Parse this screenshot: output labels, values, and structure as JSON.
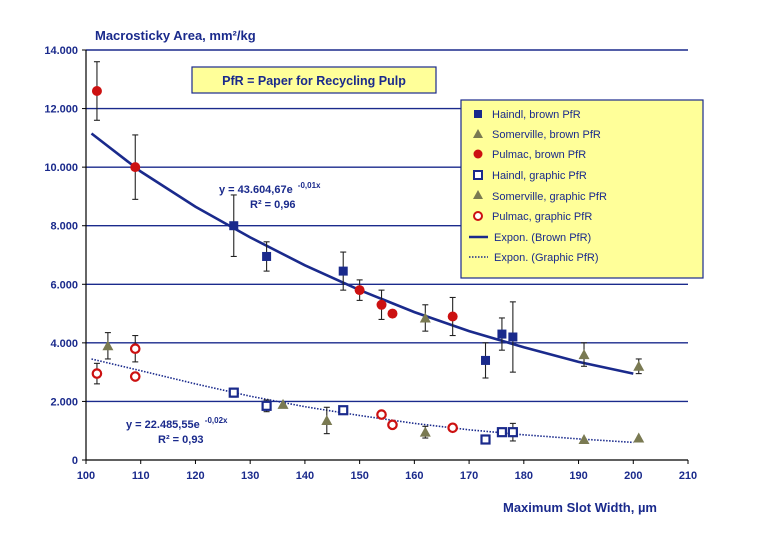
{
  "chart_data": {
    "type": "scatter",
    "title": "Macrosticky Area, mm²/kg",
    "xlabel": "Maximum Slot Width, µm",
    "ylabel": "",
    "xlim": [
      100,
      210
    ],
    "ylim": [
      0,
      14000
    ],
    "x_ticks": [
      100,
      110,
      120,
      130,
      140,
      150,
      160,
      170,
      180,
      190,
      200,
      210
    ],
    "x_tick_labels": [
      "100",
      "110",
      "120",
      "130",
      "140",
      "150",
      "160",
      "170",
      "180",
      "190",
      "200",
      "210"
    ],
    "y_ticks": [
      0,
      2000,
      4000,
      6000,
      8000,
      10000,
      12000,
      14000
    ],
    "y_tick_labels": [
      "0",
      "2.000",
      "4.000",
      "6.000",
      "8.000",
      "10.000",
      "12.000",
      "14.000"
    ],
    "grid": "horizontal",
    "note": "PfR = Paper for Recycling Pulp",
    "legend_position": "right",
    "series": [
      {
        "name": "Haindl, brown PfR",
        "marker": "square-filled",
        "color": "#1a2a8c",
        "points": [
          {
            "x": 127,
            "y": 8000,
            "err": 1050
          },
          {
            "x": 133,
            "y": 6950,
            "err": 500
          },
          {
            "x": 147,
            "y": 6450,
            "err": 650
          },
          {
            "x": 173,
            "y": 3400,
            "err": 600
          },
          {
            "x": 176,
            "y": 4300,
            "err": 550
          },
          {
            "x": 178,
            "y": 4200,
            "err": 1200
          }
        ]
      },
      {
        "name": "Somerville, brown PfR",
        "marker": "triangle",
        "color": "#7a7a52",
        "points": [
          {
            "x": 162,
            "y": 4850,
            "err": 450
          },
          {
            "x": 191,
            "y": 3600,
            "err": 400
          },
          {
            "x": 201,
            "y": 3200,
            "err": 250
          }
        ]
      },
      {
        "name": "Pulmac, brown PfR",
        "marker": "circle-filled",
        "color": "#cc1111",
        "points": [
          {
            "x": 102,
            "y": 12600,
            "err": 1000
          },
          {
            "x": 109,
            "y": 10000,
            "err": 1100
          },
          {
            "x": 150,
            "y": 5800,
            "err": 350
          },
          {
            "x": 154,
            "y": 5300,
            "err": 500
          },
          {
            "x": 156,
            "y": 5000,
            "err": 0
          },
          {
            "x": 167,
            "y": 4900,
            "err": 650
          }
        ]
      },
      {
        "name": "Haindl, graphic PfR",
        "marker": "square-open",
        "color": "#1a2a8c",
        "points": [
          {
            "x": 127,
            "y": 2300,
            "err": 150
          },
          {
            "x": 133,
            "y": 1850,
            "err": 200
          },
          {
            "x": 147,
            "y": 1700,
            "err": 0
          },
          {
            "x": 173,
            "y": 700,
            "err": 0
          },
          {
            "x": 176,
            "y": 950,
            "err": 0
          },
          {
            "x": 178,
            "y": 950,
            "err": 300
          }
        ]
      },
      {
        "name": "Somerville, graphic PfR",
        "marker": "triangle",
        "color": "#7a7a52",
        "points": [
          {
            "x": 104,
            "y": 3900,
            "err": 450
          },
          {
            "x": 136,
            "y": 1900,
            "err": 0
          },
          {
            "x": 144,
            "y": 1350,
            "err": 450
          },
          {
            "x": 162,
            "y": 950,
            "err": 200
          },
          {
            "x": 191,
            "y": 700,
            "err": 0
          },
          {
            "x": 201,
            "y": 750,
            "err": 0
          }
        ]
      },
      {
        "name": "Pulmac, graphic PfR",
        "marker": "circle-open",
        "color": "#cc1111",
        "points": [
          {
            "x": 102,
            "y": 2950,
            "err": 350
          },
          {
            "x": 109,
            "y": 3800,
            "err": 450
          },
          {
            "x": 109,
            "y": 2850,
            "err": 0
          },
          {
            "x": 154,
            "y": 1550,
            "err": 0
          },
          {
            "x": 156,
            "y": 1200,
            "err": 0
          },
          {
            "x": 167,
            "y": 1100,
            "err": 0
          }
        ]
      }
    ],
    "trendlines": [
      {
        "name": "Expon. (Brown PfR)",
        "style": "solid",
        "color": "#1a2a8c",
        "points": [
          [
            101,
            11150
          ],
          [
            110,
            9850
          ],
          [
            120,
            8650
          ],
          [
            130,
            7600
          ],
          [
            140,
            6650
          ],
          [
            150,
            5800
          ],
          [
            160,
            5050
          ],
          [
            170,
            4400
          ],
          [
            180,
            3850
          ],
          [
            190,
            3350
          ],
          [
            200,
            2950
          ]
        ]
      },
      {
        "name": "Expon. (Graphic PfR)",
        "style": "dotted",
        "color": "#1a2a8c",
        "points": [
          [
            101,
            3450
          ],
          [
            110,
            3050
          ],
          [
            120,
            2600
          ],
          [
            130,
            2180
          ],
          [
            140,
            1820
          ],
          [
            150,
            1520
          ],
          [
            160,
            1250
          ],
          [
            170,
            1030
          ],
          [
            180,
            860
          ],
          [
            190,
            720
          ],
          [
            200,
            600
          ]
        ]
      }
    ],
    "equations": {
      "brown": {
        "main": "y = 43.604,67e",
        "exp": "-0,01x",
        "r2": "R² = 0,96"
      },
      "graphic": {
        "main": "y = 22.485,55e",
        "exp": "-0,02x",
        "r2": "R² = 0,93"
      }
    },
    "legend_labels": {
      "haindl_brown": "Haindl, brown PfR",
      "somerville_brown": "Somerville, brown PfR",
      "pulmac_brown": "Pulmac, brown PfR",
      "haindl_graphic": "Haindl, graphic PfR",
      "somerville_graphic": "Somerville, graphic PfR",
      "pulmac_graphic": "Pulmac, graphic PfR",
      "expon_brown": "Expon. (Brown PfR)",
      "expon_graphic": "Expon. (Graphic PfR)"
    },
    "colors": {
      "axis_text": "#1a2a8c",
      "grid": "#1a2a8c",
      "legend_bg": "#ffff99",
      "legend_border": "#1a2a8c"
    }
  }
}
